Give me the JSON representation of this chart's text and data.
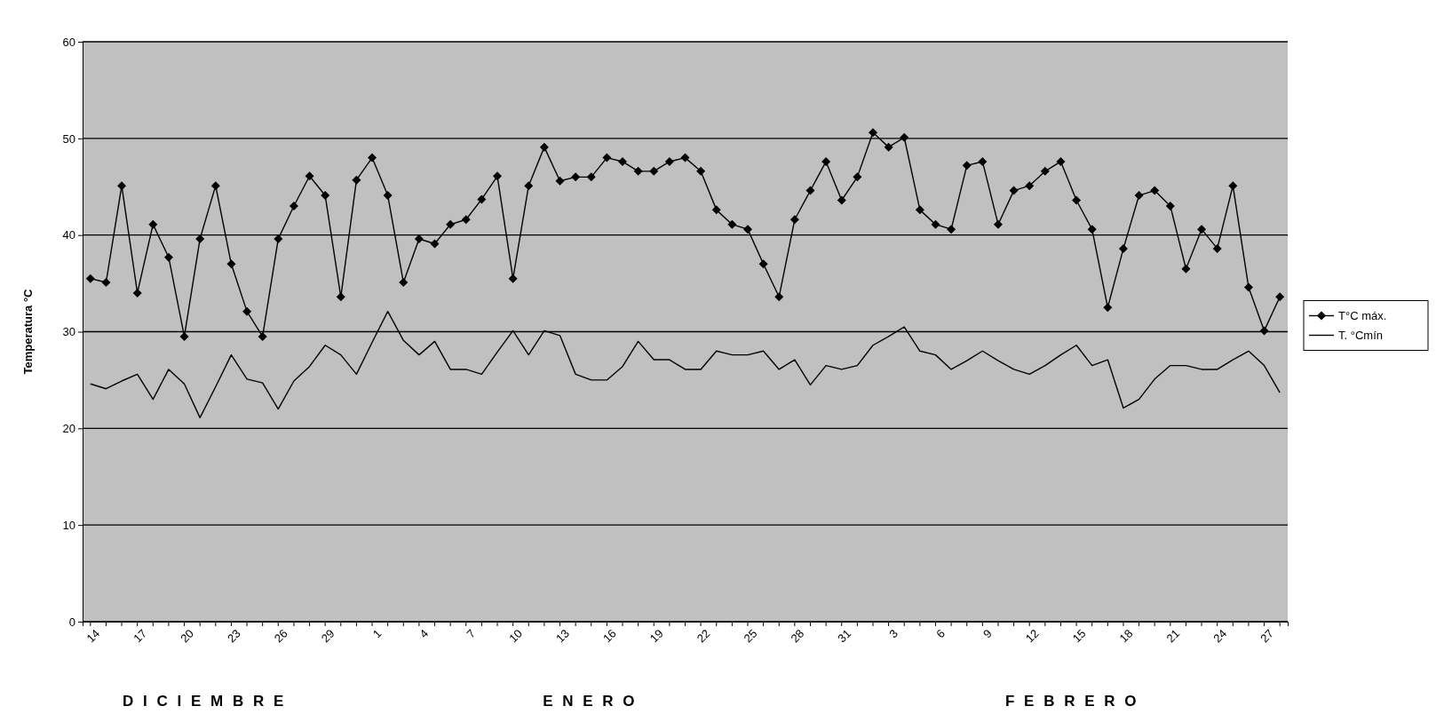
{
  "chart_data": {
    "type": "line",
    "ylabel": "Temperatura °C",
    "categories": [
      "14",
      null,
      null,
      "17",
      null,
      null,
      "20",
      null,
      null,
      "23",
      null,
      null,
      "26",
      null,
      null,
      "29",
      null,
      null,
      "1",
      null,
      null,
      "4",
      null,
      null,
      "7",
      null,
      null,
      "10",
      null,
      null,
      "13",
      null,
      null,
      "16",
      null,
      null,
      "19",
      null,
      null,
      "22",
      null,
      null,
      "25",
      null,
      null,
      "28",
      null,
      null,
      "31",
      null,
      null,
      "3",
      null,
      null,
      "6",
      null,
      null,
      "9",
      null,
      null,
      "12",
      null,
      null,
      "15",
      null,
      null,
      "18",
      null,
      null,
      "21",
      null,
      null,
      "24",
      null,
      null,
      "27",
      null
    ],
    "series": [
      {
        "name": "T°C máx.",
        "color": "#000000",
        "marker": "diamond",
        "values": [
          35.5,
          35.1,
          45.1,
          34.0,
          41.1,
          37.7,
          29.5,
          39.6,
          45.1,
          37.0,
          32.1,
          29.5,
          39.6,
          43.0,
          46.1,
          44.1,
          33.6,
          45.7,
          48.0,
          44.1,
          35.1,
          39.6,
          39.1,
          41.1,
          41.6,
          43.7,
          46.1,
          35.5,
          45.1,
          49.1,
          45.6,
          46.0,
          46.0,
          48.0,
          47.6,
          46.6,
          46.6,
          47.6,
          48.0,
          46.6,
          42.6,
          41.1,
          40.6,
          37.0,
          33.6,
          41.6,
          44.6,
          47.6,
          43.6,
          46.0,
          50.6,
          49.1,
          50.1,
          42.6,
          41.1,
          40.6,
          47.2,
          47.6,
          41.1,
          44.6,
          45.1,
          46.6,
          47.6,
          43.6,
          40.6,
          32.5,
          38.6,
          44.1,
          44.6,
          43.0,
          36.5,
          40.6,
          38.6,
          45.1,
          34.6,
          30.1,
          33.6
        ]
      },
      {
        "name": "T. °Cmín",
        "color": "#000000",
        "marker": "none",
        "values": [
          24.6,
          24.1,
          24.9,
          25.6,
          23.0,
          26.1,
          24.6,
          21.1,
          24.3,
          27.6,
          25.1,
          24.7,
          22.0,
          24.9,
          26.4,
          28.6,
          27.6,
          25.6,
          28.9,
          32.1,
          29.1,
          27.6,
          29.0,
          26.1,
          26.1,
          25.6,
          27.9,
          30.1,
          27.6,
          30.1,
          29.6,
          25.6,
          25.0,
          25.0,
          26.4,
          29.0,
          27.1,
          27.1,
          26.1,
          26.1,
          28.0,
          27.6,
          27.6,
          28.0,
          26.1,
          27.1,
          24.5,
          26.5,
          26.1,
          26.5,
          28.6,
          29.5,
          30.5,
          28.0,
          27.6,
          26.1,
          27.0,
          28.0,
          27.0,
          26.1,
          25.6,
          26.5,
          27.6,
          28.6,
          26.5,
          27.1,
          22.1,
          23.0,
          25.1,
          26.5,
          26.5,
          26.1,
          26.1,
          27.1,
          28.0,
          26.5,
          23.7
        ]
      }
    ],
    "ylim": [
      0,
      60
    ],
    "yticks": [
      0,
      10,
      20,
      30,
      40,
      50,
      60
    ],
    "grid": "y",
    "legend": "right",
    "line_style": "solid",
    "annotations": [
      "D I C I E M B R E",
      "E N E R O",
      "F E B R E R O"
    ]
  }
}
